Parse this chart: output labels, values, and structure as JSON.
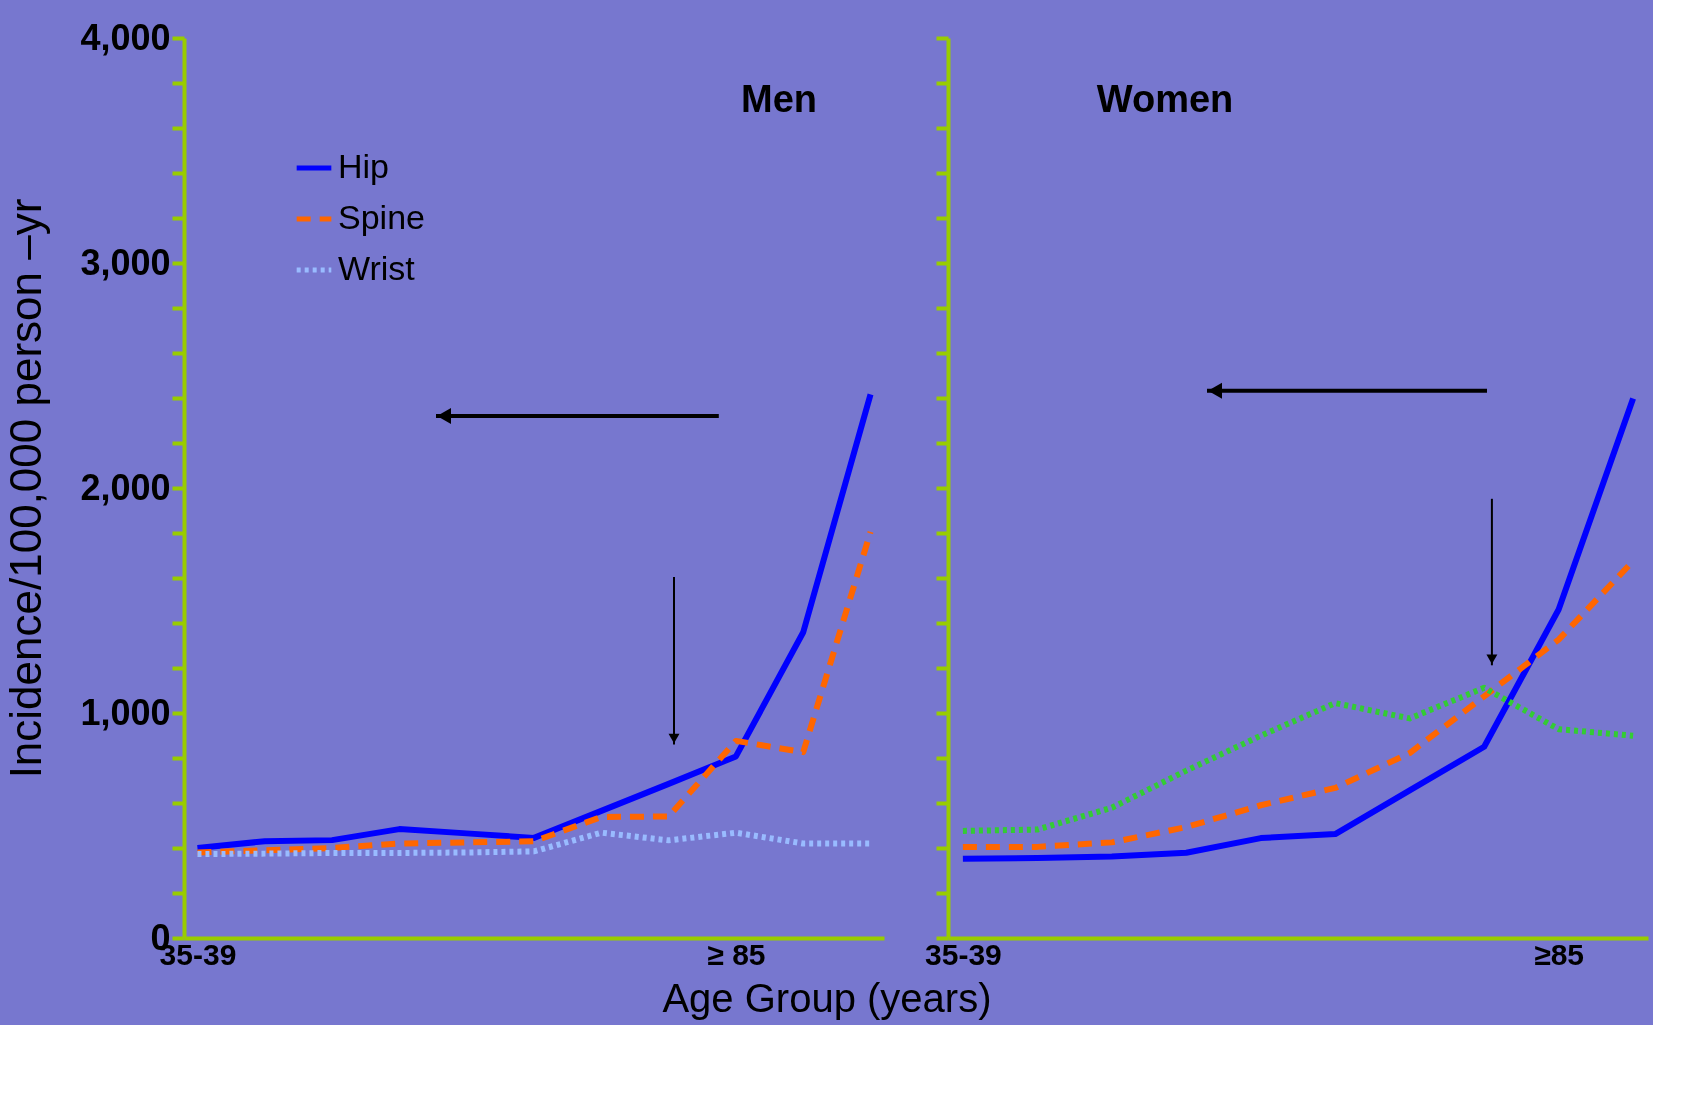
{
  "chart_data": [
    {
      "type": "line",
      "title": "Men",
      "ylabel": "Incidence/100,000 person –yr",
      "xlabel": "Age Group (years)",
      "categories": [
        "35-39",
        null,
        null,
        null,
        null,
        null,
        null,
        null,
        "≥ 85",
        null,
        null
      ],
      "ylim": [
        0,
        4000
      ],
      "yticks": [
        0,
        {
          "value": 200,
          "label": null
        },
        {
          "value": 400,
          "label": null
        },
        {
          "value": 600,
          "label": null
        },
        {
          "value": 800,
          "label": null
        },
        {
          "value": 1000,
          "label": "1,000"
        },
        {
          "value": 1200,
          "label": null
        },
        {
          "value": 1400,
          "label": null
        },
        {
          "value": 1600,
          "label": null
        },
        {
          "value": 1800,
          "label": null
        },
        {
          "value": 2000,
          "label": "2,000"
        },
        {
          "value": 2200,
          "label": null
        },
        {
          "value": 2400,
          "label": null
        },
        {
          "value": 2600,
          "label": null
        },
        {
          "value": 2800,
          "label": null
        },
        {
          "value": 3000,
          "label": "3,000"
        },
        {
          "value": 3200,
          "label": null
        },
        {
          "value": 3400,
          "label": null
        },
        {
          "value": 3600,
          "label": null
        },
        {
          "value": 3800,
          "label": null
        },
        {
          "value": 4000,
          "label": "4,000"
        }
      ],
      "legend": "top left",
      "grid": false,
      "series": [
        {
          "name": "Hip",
          "color": "#0000ff",
          "line_style": "solid",
          "values": [
            400,
            430,
            435,
            484,
            465,
            445,
            565,
            685,
            807,
            1359,
            2416
          ]
        },
        {
          "name": "Spine",
          "color": "#ff6600",
          "line_style": "dashed",
          "values": [
            380,
            390,
            400,
            420,
            425,
            430,
            538,
            540,
            876,
            826,
            1805
          ]
        },
        {
          "name": "Wrist",
          "color": "#99bbff",
          "line_style": "dotted",
          "values": [
            373,
            375,
            378,
            378,
            380,
            385,
            468,
            434,
            468,
            420,
            420
          ]
        }
      ]
    },
    {
      "type": "line",
      "title": "Women",
      "categories": [
        "35-39",
        null,
        null,
        null,
        null,
        null,
        null,
        null,
        "≥85",
        null
      ],
      "ylim": [
        0,
        4000
      ],
      "tick_labels": "x",
      "yticks": [
        0,
        200,
        400,
        600,
        800,
        1000,
        1200,
        1400,
        1600,
        1800,
        2000,
        2200,
        2400,
        2600,
        2800,
        3000,
        3200,
        3400,
        3600,
        3800,
        4000
      ],
      "grid": false,
      "series": [
        {
          "color": "#0000ff",
          "line_style": "solid",
          "values": [
            352,
            356,
            362,
            379,
            444,
            462,
            656,
            850,
            1460,
            2398
          ]
        },
        {
          "color": "#ff6600",
          "line_style": "dashed",
          "values": [
            405,
            405,
            425,
            493,
            590,
            667,
            822,
            1074,
            1326,
            1675
          ]
        },
        {
          "color": "#33cc33",
          "line_style": "dotted",
          "values": [
            476,
            482,
            579,
            744,
            899,
            1044,
            976,
            1112,
            928,
            899
          ]
        }
      ]
    }
  ]
}
